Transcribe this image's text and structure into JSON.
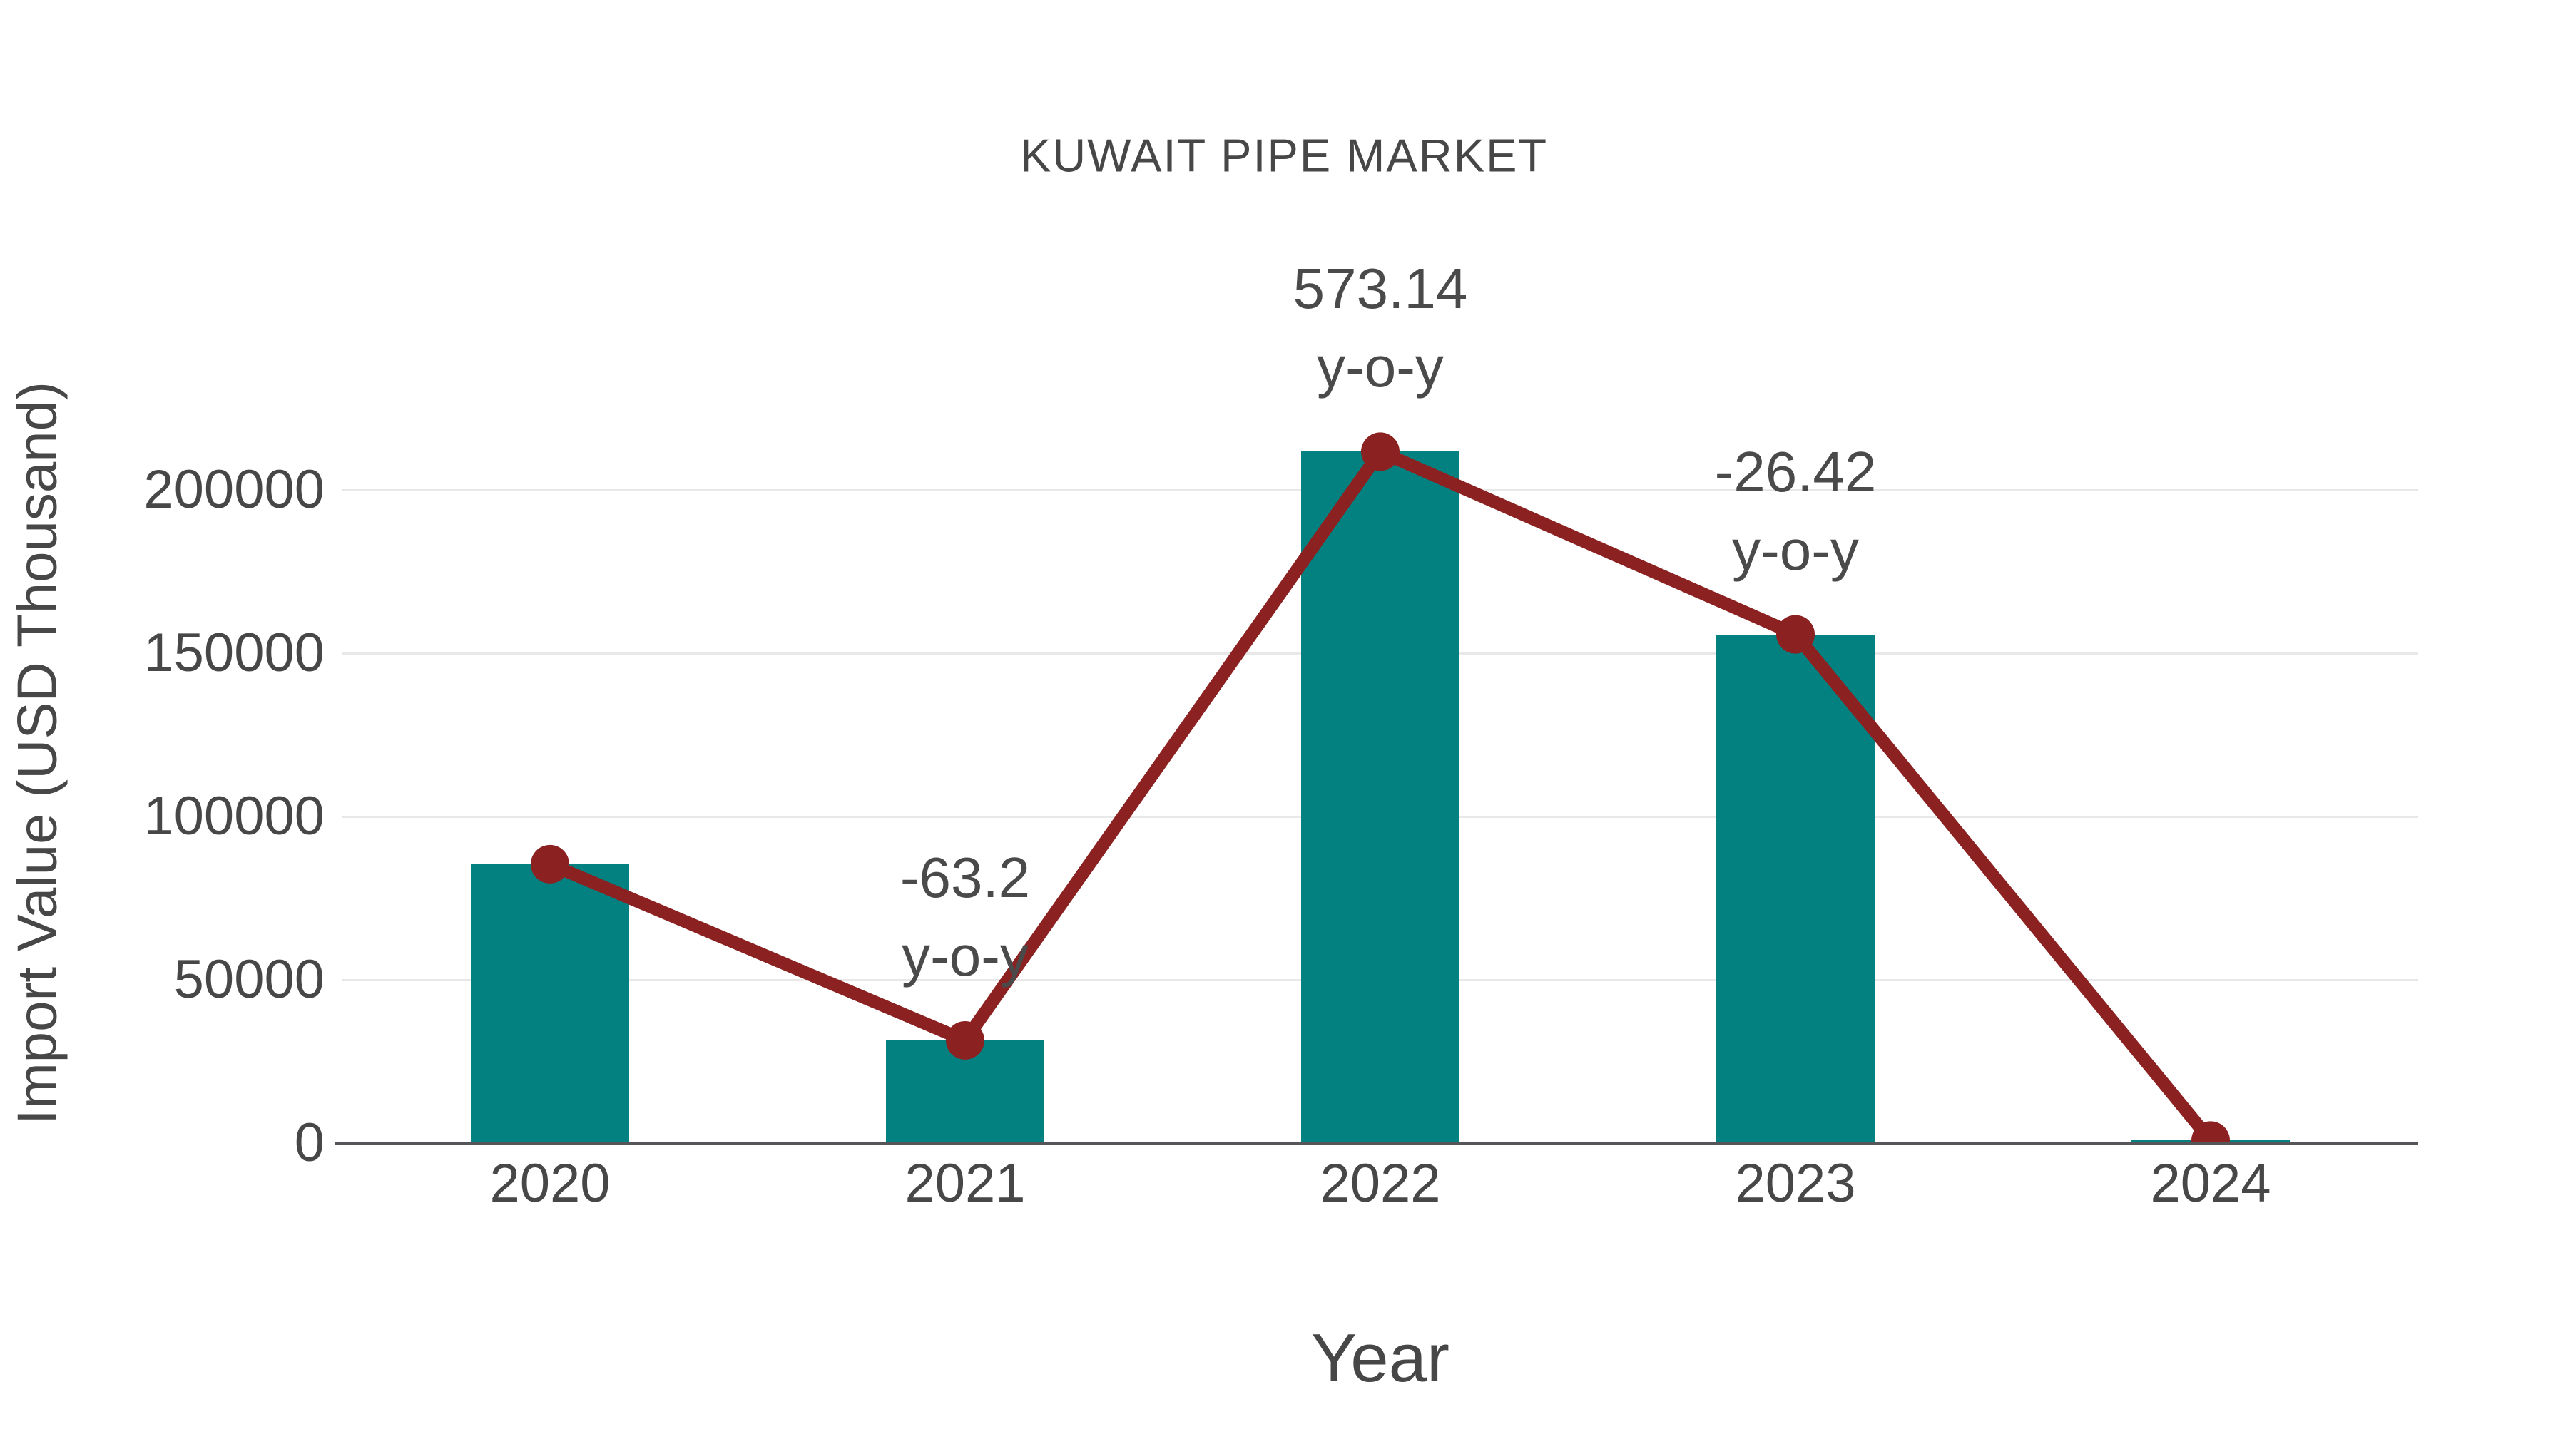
{
  "chart_data": {
    "type": "bar",
    "title": "KUWAIT PIPE MARKET",
    "xlabel": "Year",
    "ylabel": "Import Value (USD Thousand)",
    "categories": [
      "2020",
      "2021",
      "2022",
      "2023",
      "2024"
    ],
    "values": [
      85400,
      31450,
      211700,
      155760,
      800
    ],
    "line_overlay": {
      "description": "line with circular markers tracing the same import values over bar tops",
      "values_follow_bars": true
    },
    "annotations": [
      {
        "category": "2021",
        "value_label": "-63.2",
        "sub_label": "y-o-y"
      },
      {
        "category": "2022",
        "value_label": "573.14",
        "sub_label": "y-o-y"
      },
      {
        "category": "2023",
        "value_label": "-26.42",
        "sub_label": "y-o-y"
      }
    ],
    "yticks": [
      "0",
      "50000",
      "100000",
      "150000",
      "200000"
    ],
    "ytick_values": [
      0,
      50000,
      100000,
      150000,
      200000
    ],
    "ylim": [
      0,
      295000
    ],
    "grid": "horizontal",
    "legend": "none",
    "colors": {
      "bar": "#028180",
      "line": "#8B2121",
      "text": "#474747",
      "grid": "#e8e8e8",
      "axis": "#56565a"
    }
  }
}
